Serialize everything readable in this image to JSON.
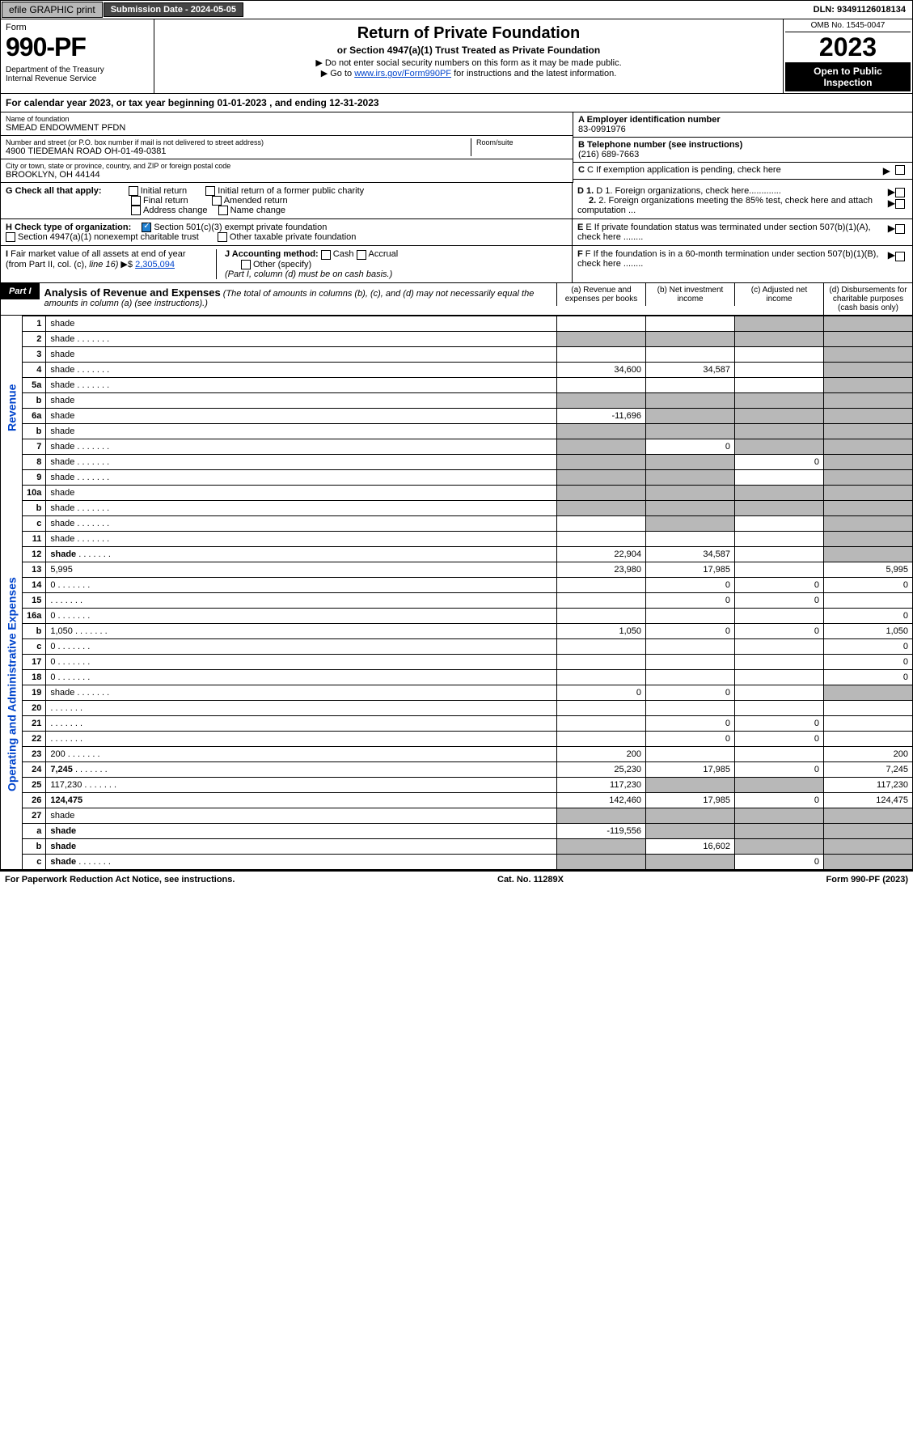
{
  "topbar": {
    "efile": "efile GRAPHIC print",
    "subdate_lbl": "Submission Date - 2024-05-05",
    "dln": "DLN: 93491126018134"
  },
  "header": {
    "form": "Form",
    "num": "990-PF",
    "dept": "Department of the Treasury\nInternal Revenue Service",
    "title": "Return of Private Foundation",
    "sub": "or Section 4947(a)(1) Trust Treated as Private Foundation",
    "note1": "▶ Do not enter social security numbers on this form as it may be made public.",
    "note2": "▶ Go to ",
    "link": "www.irs.gov/Form990PF",
    "note3": " for instructions and the latest information.",
    "omb": "OMB No. 1545-0047",
    "year": "2023",
    "open": "Open to Public Inspection"
  },
  "calyear": "For calendar year 2023, or tax year beginning 01-01-2023                                     , and ending 12-31-2023",
  "id": {
    "name_lbl": "Name of foundation",
    "name": "SMEAD ENDOWMENT PFDN",
    "addr_lbl": "Number and street (or P.O. box number if mail is not delivered to street address)",
    "addr": "4900 TIEDEMAN ROAD OH-01-49-0381",
    "room_lbl": "Room/suite",
    "city_lbl": "City or town, state or province, country, and ZIP or foreign postal code",
    "city": "BROOKLYN, OH  44144",
    "a_lbl": "A Employer identification number",
    "a": "83-0991976",
    "b_lbl": "B Telephone number (see instructions)",
    "b": "(216) 689-7663",
    "c": "C If exemption application is pending, check here",
    "d1": "D 1. Foreign organizations, check here.............",
    "d2": "2. Foreign organizations meeting the 85% test, check here and attach computation ...",
    "e": "E If private foundation status was terminated under section 507(b)(1)(A), check here ........",
    "f": "F If the foundation is in a 60-month termination under section 507(b)(1)(B), check here ........"
  },
  "g": {
    "lbl": "G Check all that apply:",
    "opts": [
      "Initial return",
      "Initial return of a former public charity",
      "Final return",
      "Amended return",
      "Address change",
      "Name change"
    ]
  },
  "h": {
    "lbl": "H Check type of organization:",
    "o1": "Section 501(c)(3) exempt private foundation",
    "o2": "Section 4947(a)(1) nonexempt charitable trust",
    "o3": "Other taxable private foundation"
  },
  "i": {
    "lbl": "I Fair market value of all assets at end of year (from Part II, col. (c), line 16) ▶$",
    "val": "2,305,094"
  },
  "j": {
    "lbl": "J Accounting method:",
    "cash": "Cash",
    "accrual": "Accrual",
    "other": "Other (specify)",
    "note": "(Part I, column (d) must be on cash basis.)"
  },
  "part1": {
    "lbl": "Part I",
    "title": "Analysis of Revenue and Expenses",
    "note": " (The total of amounts in columns (b), (c), and (d) may not necessarily equal the amounts in column (a) (see instructions).)"
  },
  "cols": {
    "a": "(a)   Revenue and expenses per books",
    "b": "(b)   Net investment income",
    "c": "(c)   Adjusted net income",
    "d": "(d)   Disbursements for charitable purposes (cash basis only)"
  },
  "side": {
    "rev": "Revenue",
    "exp": "Operating and Administrative Expenses"
  },
  "rows": [
    {
      "n": "1",
      "d": "shade",
      "a": "",
      "b": "",
      "c": "shade"
    },
    {
      "n": "2",
      "d": "shade",
      "dots": 1,
      "a": "shade",
      "b": "shade",
      "c": "shade"
    },
    {
      "n": "3",
      "d": "shade",
      "a": "",
      "b": "",
      "c": ""
    },
    {
      "n": "4",
      "d": "shade",
      "dots": 1,
      "a": "34,600",
      "b": "34,587",
      "c": ""
    },
    {
      "n": "5a",
      "d": "shade",
      "dots": 1,
      "a": "",
      "b": "",
      "c": ""
    },
    {
      "n": "b",
      "d": "shade",
      "a": "shade",
      "b": "shade",
      "c": "shade"
    },
    {
      "n": "6a",
      "d": "shade",
      "a": "-11,696",
      "b": "shade",
      "c": "shade"
    },
    {
      "n": "b",
      "d": "shade",
      "a": "shade",
      "b": "shade",
      "c": "shade"
    },
    {
      "n": "7",
      "d": "shade",
      "dots": 1,
      "a": "shade",
      "b": "0",
      "c": "shade"
    },
    {
      "n": "8",
      "d": "shade",
      "dots": 1,
      "a": "shade",
      "b": "shade",
      "c": "0"
    },
    {
      "n": "9",
      "d": "shade",
      "dots": 1,
      "a": "shade",
      "b": "shade",
      "c": ""
    },
    {
      "n": "10a",
      "d": "shade",
      "a": "shade",
      "b": "shade",
      "c": "shade"
    },
    {
      "n": "b",
      "d": "shade",
      "dots": 1,
      "a": "shade",
      "b": "shade",
      "c": "shade"
    },
    {
      "n": "c",
      "d": "shade",
      "dots": 1,
      "a": "",
      "b": "shade",
      "c": ""
    },
    {
      "n": "11",
      "d": "shade",
      "dots": 1,
      "a": "",
      "b": "",
      "c": ""
    },
    {
      "n": "12",
      "d": "shade",
      "dots": 1,
      "bold": 1,
      "a": "22,904",
      "b": "34,587",
      "c": ""
    },
    {
      "n": "13",
      "d": "5,995",
      "a": "23,980",
      "b": "17,985",
      "c": ""
    },
    {
      "n": "14",
      "d": "0",
      "dots": 1,
      "a": "",
      "b": "0",
      "c": "0"
    },
    {
      "n": "15",
      "d": "",
      "dots": 1,
      "a": "",
      "b": "0",
      "c": "0"
    },
    {
      "n": "16a",
      "d": "0",
      "dots": 1,
      "a": "",
      "b": "",
      "c": ""
    },
    {
      "n": "b",
      "d": "1,050",
      "dots": 1,
      "a": "1,050",
      "b": "0",
      "c": "0"
    },
    {
      "n": "c",
      "d": "0",
      "dots": 1,
      "a": "",
      "b": "",
      "c": ""
    },
    {
      "n": "17",
      "d": "0",
      "dots": 1,
      "a": "",
      "b": "",
      "c": ""
    },
    {
      "n": "18",
      "d": "0",
      "dots": 1,
      "a": "",
      "b": "",
      "c": ""
    },
    {
      "n": "19",
      "d": "shade",
      "dots": 1,
      "a": "0",
      "b": "0",
      "c": ""
    },
    {
      "n": "20",
      "d": "",
      "dots": 1,
      "a": "",
      "b": "",
      "c": ""
    },
    {
      "n": "21",
      "d": "",
      "dots": 1,
      "a": "",
      "b": "0",
      "c": "0"
    },
    {
      "n": "22",
      "d": "",
      "dots": 1,
      "a": "",
      "b": "0",
      "c": "0"
    },
    {
      "n": "23",
      "d": "200",
      "dots": 1,
      "a": "200",
      "b": "",
      "c": ""
    },
    {
      "n": "24",
      "d": "7,245",
      "dots": 1,
      "bold": 1,
      "a": "25,230",
      "b": "17,985",
      "c": "0"
    },
    {
      "n": "25",
      "d": "117,230",
      "dots": 1,
      "a": "117,230",
      "b": "shade",
      "c": "shade"
    },
    {
      "n": "26",
      "d": "124,475",
      "bold": 1,
      "a": "142,460",
      "b": "17,985",
      "c": "0"
    },
    {
      "n": "27",
      "d": "shade",
      "a": "shade",
      "b": "shade",
      "c": "shade"
    },
    {
      "n": "a",
      "d": "shade",
      "bold": 1,
      "a": "-119,556",
      "b": "shade",
      "c": "shade"
    },
    {
      "n": "b",
      "d": "shade",
      "bold": 1,
      "a": "shade",
      "b": "16,602",
      "c": "shade"
    },
    {
      "n": "c",
      "d": "shade",
      "dots": 1,
      "bold": 1,
      "a": "shade",
      "b": "shade",
      "c": "0"
    }
  ],
  "footer": {
    "l": "For Paperwork Reduction Act Notice, see instructions.",
    "c": "Cat. No. 11289X",
    "r": "Form 990-PF (2023)"
  }
}
